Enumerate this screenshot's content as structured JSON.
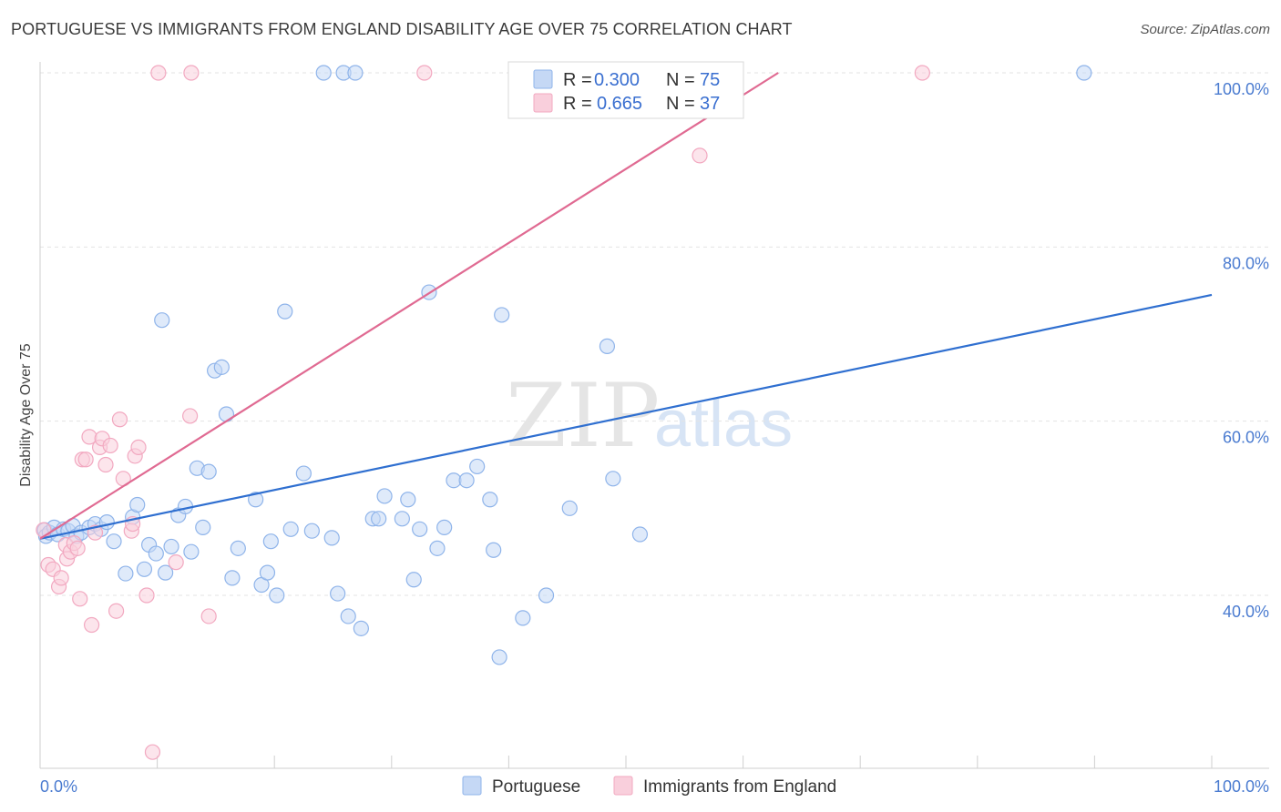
{
  "header": {
    "title": "PORTUGUESE VS IMMIGRANTS FROM ENGLAND DISABILITY AGE OVER 75 CORRELATION CHART",
    "source": "Source: ZipAtlas.com"
  },
  "watermark": {
    "zip": "ZIP",
    "atlas": "atlas"
  },
  "legend": {
    "items": [
      {
        "r_label": "R =",
        "r_value": "0.300",
        "n_label": "N =",
        "n_value": "75",
        "color": "#8fb4ea",
        "fill": "#c5d8f5"
      },
      {
        "r_label": "R =",
        "r_value": "0.665",
        "n_label": "N =",
        "n_value": "37",
        "color": "#f2a8c0",
        "fill": "#f9cfdc"
      }
    ]
  },
  "bottom_legend": {
    "series1": "Portuguese",
    "series2": "Immigrants from England"
  },
  "chart_data": {
    "type": "scatter",
    "title": "PORTUGUESE VS IMMIGRANTS FROM ENGLAND DISABILITY AGE OVER 75 CORRELATION CHART",
    "xlabel": "",
    "ylabel": "Disability Age Over 75",
    "xlim": [
      0,
      100
    ],
    "ylim": [
      20,
      102
    ],
    "x_tick_labels": [
      "0.0%",
      "100.0%"
    ],
    "y_ticks": [
      40,
      60,
      80,
      100
    ],
    "y_tick_labels": [
      "40.0%",
      "60.0%",
      "80.0%",
      "100.0%"
    ],
    "grid": true,
    "legend_position": "top-center",
    "series": [
      {
        "name": "Portuguese",
        "color": "#8fb4ea",
        "line_color": "#2f6fd0",
        "trend": {
          "x": [
            0,
            100
          ],
          "y": [
            46.5,
            74.5
          ]
        },
        "points": [
          [
            0.4,
            47.5
          ],
          [
            0.5,
            46.8
          ],
          [
            0.8,
            47.2
          ],
          [
            1.2,
            47.8
          ],
          [
            1.5,
            47.0
          ],
          [
            2.0,
            47.6
          ],
          [
            2.4,
            47.4
          ],
          [
            2.8,
            48.0
          ],
          [
            3.1,
            46.8
          ],
          [
            3.5,
            47.2
          ],
          [
            4.2,
            47.8
          ],
          [
            4.7,
            48.2
          ],
          [
            5.2,
            47.6
          ],
          [
            5.7,
            48.4
          ],
          [
            6.3,
            46.2
          ],
          [
            7.3,
            42.5
          ],
          [
            7.9,
            49.0
          ],
          [
            8.3,
            50.4
          ],
          [
            8.9,
            43.0
          ],
          [
            9.3,
            45.8
          ],
          [
            9.9,
            44.8
          ],
          [
            10.4,
            71.6
          ],
          [
            10.7,
            42.6
          ],
          [
            11.2,
            45.6
          ],
          [
            11.8,
            49.2
          ],
          [
            12.4,
            50.2
          ],
          [
            12.9,
            45.0
          ],
          [
            13.4,
            54.6
          ],
          [
            13.9,
            47.8
          ],
          [
            14.4,
            54.2
          ],
          [
            14.9,
            65.8
          ],
          [
            15.5,
            66.2
          ],
          [
            15.9,
            60.8
          ],
          [
            16.4,
            42.0
          ],
          [
            16.9,
            45.4
          ],
          [
            18.4,
            51.0
          ],
          [
            18.9,
            41.2
          ],
          [
            19.4,
            42.6
          ],
          [
            19.7,
            46.2
          ],
          [
            20.2,
            40.0
          ],
          [
            20.9,
            72.6
          ],
          [
            21.4,
            47.6
          ],
          [
            22.5,
            54.0
          ],
          [
            23.2,
            47.4
          ],
          [
            24.2,
            100.0
          ],
          [
            24.9,
            46.6
          ],
          [
            25.4,
            40.2
          ],
          [
            25.9,
            100.0
          ],
          [
            26.3,
            37.6
          ],
          [
            26.9,
            100.0
          ],
          [
            27.4,
            36.2
          ],
          [
            28.4,
            48.8
          ],
          [
            28.9,
            48.8
          ],
          [
            29.4,
            51.4
          ],
          [
            30.9,
            48.8
          ],
          [
            31.4,
            51.0
          ],
          [
            31.9,
            41.8
          ],
          [
            32.4,
            47.6
          ],
          [
            33.2,
            74.8
          ],
          [
            33.9,
            45.4
          ],
          [
            34.5,
            47.8
          ],
          [
            35.3,
            53.2
          ],
          [
            36.4,
            53.2
          ],
          [
            37.3,
            54.8
          ],
          [
            38.4,
            51.0
          ],
          [
            38.7,
            45.2
          ],
          [
            39.2,
            32.9
          ],
          [
            39.4,
            72.2
          ],
          [
            41.2,
            37.4
          ],
          [
            43.2,
            40.0
          ],
          [
            45.2,
            50.0
          ],
          [
            48.4,
            68.6
          ],
          [
            48.9,
            53.4
          ],
          [
            51.2,
            47.0
          ],
          [
            89.1,
            100.0
          ]
        ]
      },
      {
        "name": "Immigrants from England",
        "color": "#f2a8c0",
        "line_color": "#e06a92",
        "trend": {
          "x": [
            0,
            63
          ],
          "y": [
            46.5,
            100.0
          ]
        },
        "points": [
          [
            0.3,
            47.5
          ],
          [
            0.7,
            43.5
          ],
          [
            1.1,
            43.0
          ],
          [
            1.6,
            41.0
          ],
          [
            1.8,
            42.0
          ],
          [
            2.2,
            45.8
          ],
          [
            2.3,
            44.2
          ],
          [
            2.6,
            45.0
          ],
          [
            2.9,
            46.0
          ],
          [
            3.2,
            45.4
          ],
          [
            3.4,
            39.6
          ],
          [
            3.6,
            55.6
          ],
          [
            3.9,
            55.6
          ],
          [
            4.2,
            58.2
          ],
          [
            4.4,
            36.6
          ],
          [
            4.7,
            47.2
          ],
          [
            5.1,
            57.0
          ],
          [
            5.3,
            58.0
          ],
          [
            5.6,
            55.0
          ],
          [
            6.0,
            57.2
          ],
          [
            6.5,
            38.2
          ],
          [
            6.8,
            60.2
          ],
          [
            7.1,
            53.4
          ],
          [
            7.8,
            47.4
          ],
          [
            7.9,
            48.2
          ],
          [
            8.1,
            56.0
          ],
          [
            8.4,
            57.0
          ],
          [
            9.1,
            40.0
          ],
          [
            9.6,
            22.0
          ],
          [
            10.1,
            100.0
          ],
          [
            11.6,
            43.8
          ],
          [
            12.8,
            60.6
          ],
          [
            12.9,
            100.0
          ],
          [
            14.4,
            37.6
          ],
          [
            32.8,
            100.0
          ],
          [
            56.3,
            90.5
          ],
          [
            75.3,
            100.0
          ]
        ]
      }
    ]
  }
}
